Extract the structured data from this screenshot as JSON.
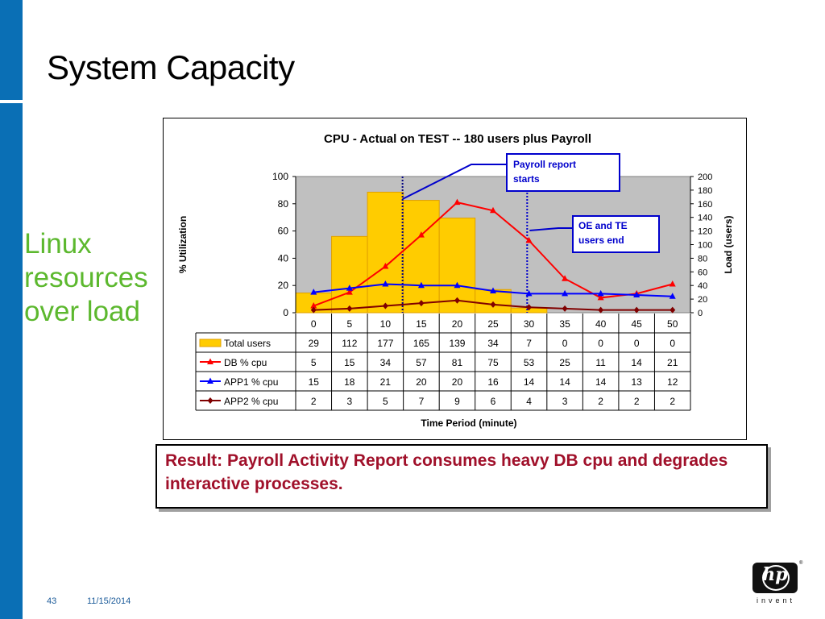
{
  "slide": {
    "title": "System Capacity",
    "side_text": [
      "Linux",
      "resources",
      "over load"
    ],
    "result_text": "Result:  Payroll Activity Report consumes heavy DB cpu and degrades interactive processes.",
    "page_number": "43",
    "date": "11/15/2014",
    "logo_text": "hp",
    "logo_tagline": "invent",
    "logo_reg": "®",
    "colors": {
      "accent_bar": "#0a6fb5",
      "side_text": "#5cb82e",
      "result_text": "#a0102a"
    }
  },
  "chart_data": {
    "type": "bar",
    "title": "CPU - Actual on TEST -- 180 users plus Payroll",
    "xlabel": "Time Period (minute)",
    "ylabel": "% Utilization",
    "y2label": "Load (users)",
    "categories": [
      "0",
      "5",
      "10",
      "15",
      "20",
      "25",
      "30",
      "35",
      "40",
      "45",
      "50"
    ],
    "ylim": [
      0,
      100
    ],
    "yticks": [
      "0",
      "20",
      "40",
      "60",
      "80",
      "100"
    ],
    "y2lim": [
      0,
      200
    ],
    "y2ticks": [
      "0",
      "20",
      "40",
      "60",
      "80",
      "100",
      "120",
      "140",
      "160",
      "180",
      "200"
    ],
    "grid": false,
    "plot_background": "#c0c0c0",
    "series": [
      {
        "name": "Total users",
        "kind": "bar",
        "axis": "right",
        "color": "#ffcc00",
        "values": [
          29,
          112,
          177,
          165,
          139,
          34,
          7,
          0,
          0,
          0,
          0
        ]
      },
      {
        "name": "DB % cpu",
        "kind": "line",
        "marker": "triangle",
        "axis": "left",
        "color": "#ff0000",
        "values": [
          5,
          15,
          34,
          57,
          81,
          75,
          53,
          25,
          11,
          14,
          21
        ]
      },
      {
        "name": "APP1 % cpu",
        "kind": "line",
        "marker": "triangle",
        "axis": "left",
        "color": "#0000ff",
        "values": [
          15,
          18,
          21,
          20,
          20,
          16,
          14,
          14,
          14,
          13,
          12
        ]
      },
      {
        "name": "APP2 % cpu",
        "kind": "line",
        "marker": "diamond",
        "axis": "left",
        "color": "#800000",
        "values": [
          2,
          3,
          5,
          7,
          9,
          6,
          4,
          3,
          2,
          2,
          2
        ]
      }
    ],
    "annotations": [
      {
        "lines": [
          "Payroll report",
          "starts"
        ],
        "at_category": "15"
      },
      {
        "lines": [
          "OE and TE",
          "users end"
        ],
        "at_category": "30"
      }
    ]
  }
}
